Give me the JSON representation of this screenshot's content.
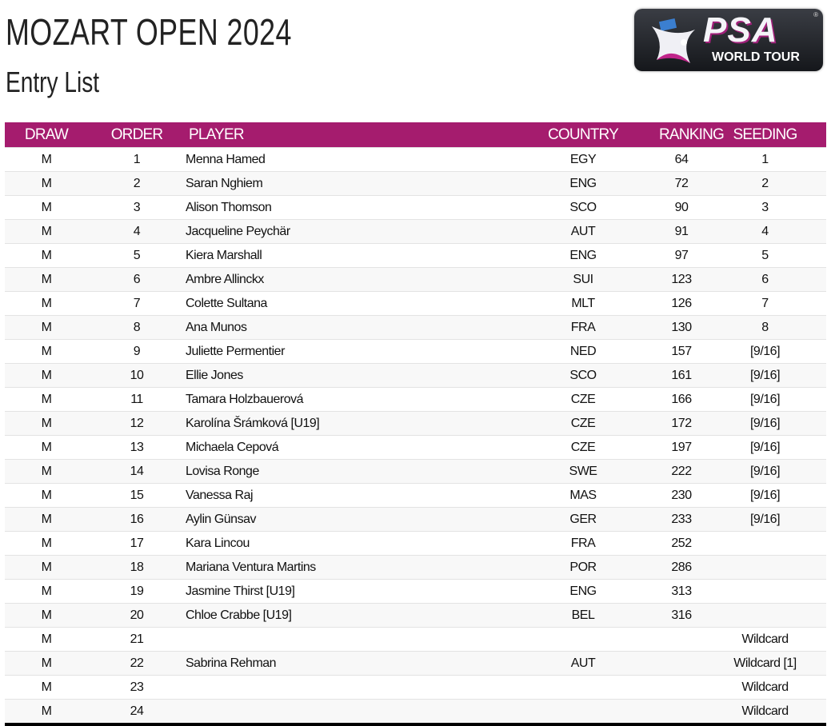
{
  "header": {
    "title": "MOZART OPEN 2024",
    "subtitle": "Entry List"
  },
  "logo": {
    "text": "PSA",
    "subtext": "WORLD TOUR"
  },
  "colors": {
    "header_bg": "#a51c6e"
  },
  "table": {
    "columns": [
      "DRAW",
      "ORDER",
      "PLAYER",
      "COUNTRY",
      "RANKING",
      "SEEDING"
    ],
    "rows": [
      [
        "M",
        "1",
        "Menna Hamed",
        "EGY",
        "64",
        "1"
      ],
      [
        "M",
        "2",
        "Saran Nghiem",
        "ENG",
        "72",
        "2"
      ],
      [
        "M",
        "3",
        "Alison Thomson",
        "SCO",
        "90",
        "3"
      ],
      [
        "M",
        "4",
        "Jacqueline Peychär",
        "AUT",
        "91",
        "4"
      ],
      [
        "M",
        "5",
        "Kiera Marshall",
        "ENG",
        "97",
        "5"
      ],
      [
        "M",
        "6",
        "Ambre Allinckx",
        "SUI",
        "123",
        "6"
      ],
      [
        "M",
        "7",
        "Colette Sultana",
        "MLT",
        "126",
        "7"
      ],
      [
        "M",
        "8",
        "Ana Munos",
        "FRA",
        "130",
        "8"
      ],
      [
        "M",
        "9",
        "Juliette Permentier",
        "NED",
        "157",
        "[9/16]"
      ],
      [
        "M",
        "10",
        "Ellie Jones",
        "SCO",
        "161",
        "[9/16]"
      ],
      [
        "M",
        "11",
        "Tamara Holzbauerová",
        "CZE",
        "166",
        "[9/16]"
      ],
      [
        "M",
        "12",
        "Karolína Šrámková [U19]",
        "CZE",
        "172",
        "[9/16]"
      ],
      [
        "M",
        "13",
        "Michaela Cepová",
        "CZE",
        "197",
        "[9/16]"
      ],
      [
        "M",
        "14",
        "Lovisa Ronge",
        "SWE",
        "222",
        "[9/16]"
      ],
      [
        "M",
        "15",
        "Vanessa Raj",
        "MAS",
        "230",
        "[9/16]"
      ],
      [
        "M",
        "16",
        "Aylin Günsav",
        "GER",
        "233",
        "[9/16]"
      ],
      [
        "M",
        "17",
        "Kara Lincou",
        "FRA",
        "252",
        ""
      ],
      [
        "M",
        "18",
        "Mariana Ventura Martins",
        "POR",
        "286",
        ""
      ],
      [
        "M",
        "19",
        "Jasmine Thirst [U19]",
        "ENG",
        "313",
        ""
      ],
      [
        "M",
        "20",
        "Chloe Crabbe [U19]",
        "BEL",
        "316",
        ""
      ],
      [
        "M",
        "21",
        "",
        "",
        "",
        "Wildcard"
      ],
      [
        "M",
        "22",
        "Sabrina Rehman",
        "AUT",
        "",
        "Wildcard [1]"
      ],
      [
        "M",
        "23",
        "",
        "",
        "",
        "Wildcard"
      ],
      [
        "M",
        "24",
        "",
        "",
        "",
        "Wildcard"
      ]
    ]
  }
}
